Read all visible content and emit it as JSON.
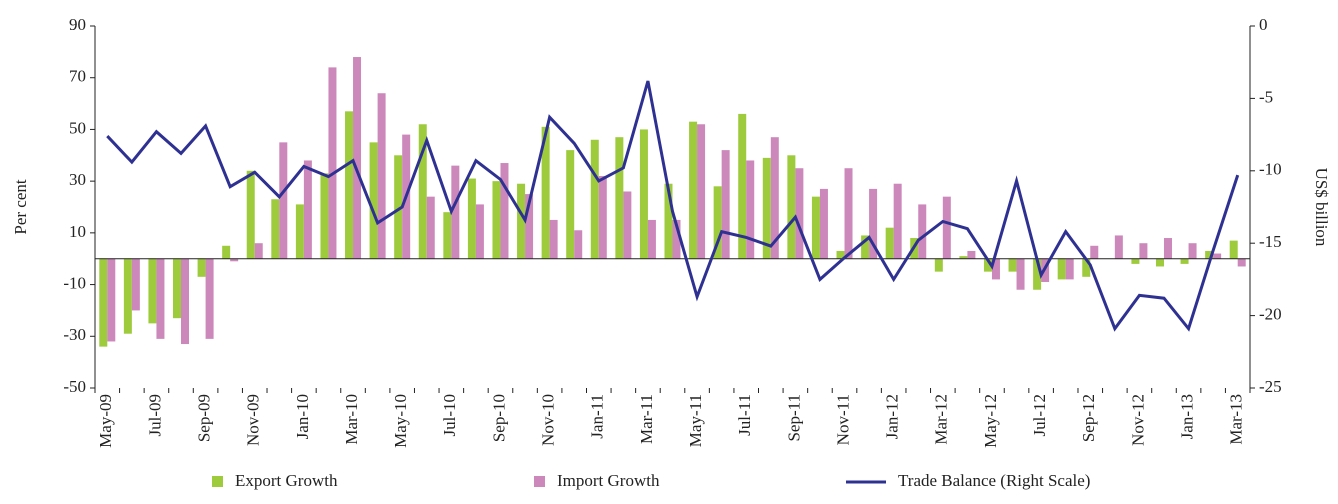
{
  "chart_data": {
    "type": "bar_line",
    "y_label": "Per cent",
    "y2_label": "US$ billion",
    "categories": [
      "May-09",
      null,
      "Jul-09",
      null,
      "Sep-09",
      null,
      "Nov-09",
      null,
      "Jan-10",
      null,
      "Mar-10",
      null,
      "May-10",
      null,
      "Jul-10",
      null,
      "Sep-10",
      null,
      "Nov-10",
      null,
      "Jan-11",
      null,
      "Mar-11",
      null,
      "May-11",
      null,
      "Jul-11",
      null,
      "Sep-11",
      null,
      "Nov-11",
      null,
      "Jan-12",
      null,
      "Mar-12",
      null,
      "May-12",
      null,
      "Jul-12",
      null,
      "Sep-12",
      null,
      "Nov-12",
      null,
      "Jan-13",
      null,
      "Mar-13"
    ],
    "series": [
      {
        "name": "Export Growth",
        "color": "#9dcb3c",
        "type": "bar",
        "values": [
          -34,
          -29,
          -25,
          -23,
          -7,
          5,
          34,
          23,
          21,
          33,
          57,
          45,
          40,
          52,
          18,
          31,
          30,
          29,
          51,
          42,
          46,
          47,
          50,
          29,
          53,
          28,
          56,
          39,
          40,
          24,
          3,
          9,
          12,
          8,
          -5,
          1,
          -5,
          -5,
          -12,
          -8,
          -7,
          0,
          -2,
          -3,
          -2,
          3,
          7
        ]
      },
      {
        "name": "Import Growth",
        "color": "#cc88bb",
        "type": "bar",
        "values": [
          -32,
          -20,
          -31,
          -33,
          -31,
          -1,
          6,
          45,
          38,
          74,
          78,
          64,
          48,
          24,
          36,
          21,
          37,
          25,
          15,
          11,
          32,
          26,
          15,
          15,
          52,
          42,
          38,
          47,
          35,
          27,
          35,
          27,
          29,
          21,
          24,
          3,
          -8,
          -12,
          -9,
          -8,
          5,
          9,
          6,
          8,
          6,
          2,
          -3
        ]
      },
      {
        "name": "Trade Balance (Right Scale)",
        "color": "#2e3192",
        "type": "line",
        "axis": "y2",
        "values": [
          -7.6,
          -9.4,
          -7.3,
          -8.8,
          -6.9,
          -11.1,
          -10.1,
          -11.8,
          -9.7,
          -10.4,
          -9.3,
          -13.6,
          -12.5,
          -7.9,
          -12.8,
          -9.3,
          -10.6,
          -13.4,
          -6.3,
          -8.1,
          -10.7,
          -9.8,
          -3.8,
          -12.8,
          -18.7,
          -14.2,
          -14.6,
          -15.2,
          -13.2,
          -17.5,
          -16,
          -14.6,
          -17.5,
          -14.8,
          -13.5,
          -14,
          -16.6,
          -10.7,
          -17.2,
          -14.2,
          -16.5,
          -20.9,
          -18.6,
          -18.8,
          -20.9,
          -15.5,
          -10.3
        ]
      }
    ],
    "ylim": [
      -50,
      90
    ],
    "yticks": [
      -50,
      -30,
      -10,
      10,
      30,
      50,
      70,
      90
    ],
    "y2lim": [
      -25,
      0
    ],
    "y2ticks": [
      -25,
      -20,
      -15,
      -10,
      -5,
      0
    ],
    "legend": "bottom"
  }
}
